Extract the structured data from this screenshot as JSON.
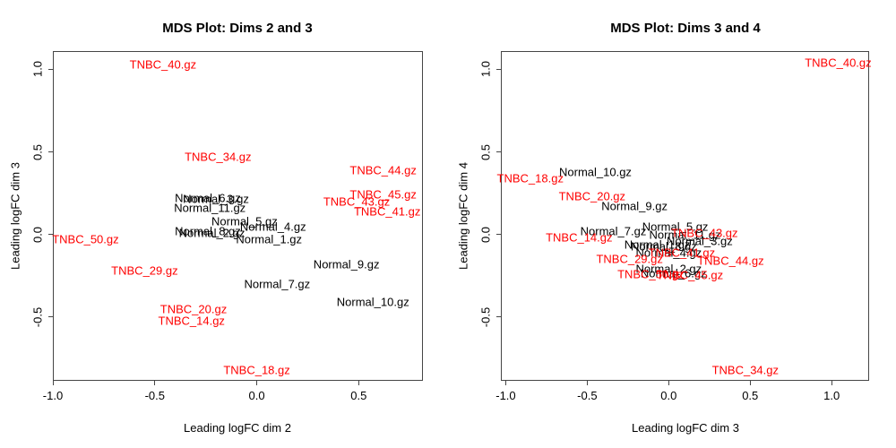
{
  "figure": {
    "background": "#ffffff"
  },
  "colors": {
    "TNBC": "#ff0000",
    "Normal": "#000000",
    "axis": "#454545"
  },
  "chart_data": [
    {
      "type": "scatter",
      "point_style": "text-label",
      "title": "MDS Plot: Dims 2 and 3",
      "xlabel": "Leading logFC dim 2",
      "ylabel": "Leading logFC dim 3",
      "xlim": [
        -1.0,
        0.815
      ],
      "ylim": [
        -0.885,
        1.11
      ],
      "grid": false,
      "legend": "none",
      "xticks": [
        {
          "value": -1.0,
          "label": "-1.0"
        },
        {
          "value": -0.5,
          "label": "-0.5"
        },
        {
          "value": 0.0,
          "label": "0.0"
        },
        {
          "value": 0.5,
          "label": "0.5"
        }
      ],
      "yticks": [
        {
          "value": 1.0,
          "label": "1.0"
        },
        {
          "value": 0.5,
          "label": "0.5"
        },
        {
          "value": 0.0,
          "label": "0.0"
        },
        {
          "value": -0.5,
          "label": "-0.5"
        }
      ],
      "series": [
        {
          "name": "Normal",
          "color": "#000000",
          "points": [
            {
              "label": "Normal_6.gz",
              "x": -0.24,
              "y": 0.22
            },
            {
              "label": "Normal_3.gz",
              "x": -0.2,
              "y": 0.215
            },
            {
              "label": "Normal_11.gz",
              "x": -0.23,
              "y": 0.16
            },
            {
              "label": "Normal_5.gz",
              "x": -0.06,
              "y": 0.08
            },
            {
              "label": "Normal_4.gz",
              "x": 0.08,
              "y": 0.05
            },
            {
              "label": "Normal_8.gz",
              "x": -0.24,
              "y": 0.02
            },
            {
              "label": "Normal_2.gz",
              "x": -0.22,
              "y": 0.01
            },
            {
              "label": "Normal_1.gz",
              "x": 0.06,
              "y": -0.03
            },
            {
              "label": "Normal_9.gz",
              "x": 0.44,
              "y": -0.18
            },
            {
              "label": "Normal_7.gz",
              "x": 0.1,
              "y": -0.3
            },
            {
              "label": "Normal_10.gz",
              "x": 0.57,
              "y": -0.41
            }
          ]
        },
        {
          "name": "TNBC",
          "color": "#ff0000",
          "points": [
            {
              "label": "TNBC_40.gz",
              "x": -0.46,
              "y": 1.03
            },
            {
              "label": "TNBC_34.gz",
              "x": -0.19,
              "y": 0.47
            },
            {
              "label": "TNBC_44.gz",
              "x": 0.62,
              "y": 0.39
            },
            {
              "label": "TNBC_43.gz",
              "x": 0.49,
              "y": 0.2
            },
            {
              "label": "TNBC_45.gz",
              "x": 0.62,
              "y": 0.24
            },
            {
              "label": "TNBC_41.gz",
              "x": 0.64,
              "y": 0.14
            },
            {
              "label": "TNBC_50.gz",
              "x": -0.84,
              "y": -0.03
            },
            {
              "label": "TNBC_29.gz",
              "x": -0.55,
              "y": -0.22
            },
            {
              "label": "TNBC_20.gz",
              "x": -0.31,
              "y": -0.45
            },
            {
              "label": "TNBC_14.gz",
              "x": -0.32,
              "y": -0.52
            },
            {
              "label": "TNBC_18.gz",
              "x": 0.0,
              "y": -0.82
            }
          ]
        }
      ]
    },
    {
      "type": "scatter",
      "point_style": "text-label",
      "title": "MDS Plot: Dims 3 and 4",
      "xlabel": "Leading logFC dim 3",
      "ylabel": "Leading logFC dim 4",
      "xlim": [
        -1.03,
        1.23
      ],
      "ylim": [
        -0.885,
        1.11
      ],
      "grid": false,
      "legend": "none",
      "xticks": [
        {
          "value": -1.0,
          "label": "-1.0"
        },
        {
          "value": -0.5,
          "label": "-0.5"
        },
        {
          "value": 0.0,
          "label": "0.0"
        },
        {
          "value": 0.5,
          "label": "0.5"
        },
        {
          "value": 1.0,
          "label": "1.0"
        }
      ],
      "yticks": [
        {
          "value": 1.0,
          "label": "1.0"
        },
        {
          "value": 0.5,
          "label": "0.5"
        },
        {
          "value": 0.0,
          "label": "0.0"
        },
        {
          "value": -0.5,
          "label": "-0.5"
        }
      ],
      "series": [
        {
          "name": "Normal",
          "color": "#000000",
          "points": [
            {
              "label": "Normal_10.gz",
              "x": -0.45,
              "y": 0.38
            },
            {
              "label": "Normal_9.gz",
              "x": -0.21,
              "y": 0.17
            },
            {
              "label": "Normal_7.gz",
              "x": -0.34,
              "y": 0.02
            },
            {
              "label": "Normal_5.gz",
              "x": 0.04,
              "y": 0.05
            },
            {
              "label": "Normal_11.gz",
              "x": 0.1,
              "y": 0.0
            },
            {
              "label": "Normal_3.gz",
              "x": 0.19,
              "y": -0.04
            },
            {
              "label": "Normal_1.gz",
              "x": -0.07,
              "y": -0.06
            },
            {
              "label": "Normal_8.gz",
              "x": -0.03,
              "y": -0.07
            },
            {
              "label": "Normal_4.gz",
              "x": 0.0,
              "y": -0.11
            },
            {
              "label": "Normal_2.gz",
              "x": 0.0,
              "y": -0.21
            },
            {
              "label": "Normal_6.gz",
              "x": 0.03,
              "y": -0.235
            }
          ]
        },
        {
          "name": "TNBC",
          "color": "#ff0000",
          "points": [
            {
              "label": "TNBC_40.gz",
              "x": 1.04,
              "y": 1.04
            },
            {
              "label": "TNBC_18.gz",
              "x": -0.85,
              "y": 0.34
            },
            {
              "label": "TNBC_20.gz",
              "x": -0.47,
              "y": 0.23
            },
            {
              "label": "TNBC_14.gz",
              "x": -0.55,
              "y": -0.02
            },
            {
              "label": "TNBC_43.gz",
              "x": 0.22,
              "y": 0.01
            },
            {
              "label": "TNBC_41.gz",
              "x": 0.08,
              "y": -0.11
            },
            {
              "label": "TNBC_29.gz",
              "x": -0.24,
              "y": -0.15
            },
            {
              "label": "TNBC_44.gz",
              "x": 0.38,
              "y": -0.16
            },
            {
              "label": "TNBC_50.gz",
              "x": -0.11,
              "y": -0.24
            },
            {
              "label": "TNBC_45.gz",
              "x": 0.13,
              "y": -0.245
            },
            {
              "label": "TNBC_34.gz",
              "x": 0.47,
              "y": -0.82
            }
          ]
        }
      ]
    }
  ]
}
